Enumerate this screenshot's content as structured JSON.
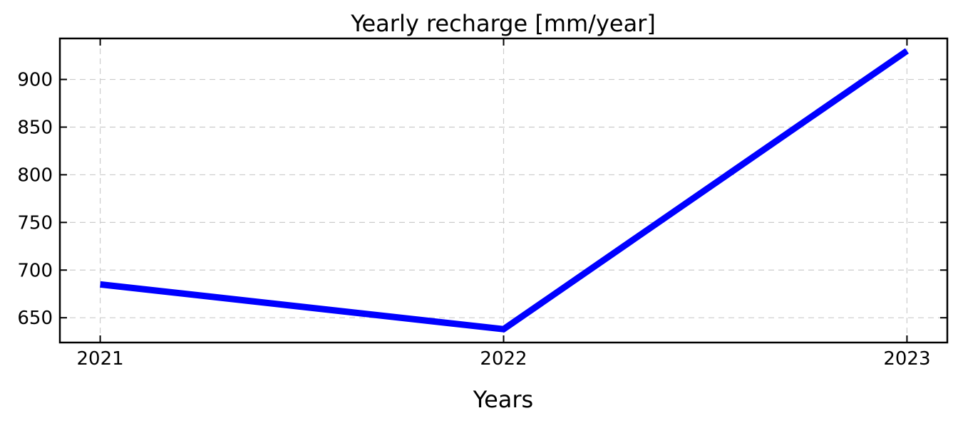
{
  "chart_data": {
    "type": "line",
    "title": "Yearly recharge [mm/year]",
    "xlabel": "Years",
    "ylabel": "",
    "x": [
      2021,
      2022,
      2023
    ],
    "x_ticks": [
      "2021",
      "2022",
      "2023"
    ],
    "y_ticks": [
      650,
      700,
      750,
      800,
      850,
      900
    ],
    "xlim": [
      2020.9,
      2023.1
    ],
    "ylim": [
      624,
      943
    ],
    "grid": true,
    "series": [
      {
        "values": [
          685,
          638,
          930
        ],
        "color": "#0000ff"
      }
    ]
  }
}
